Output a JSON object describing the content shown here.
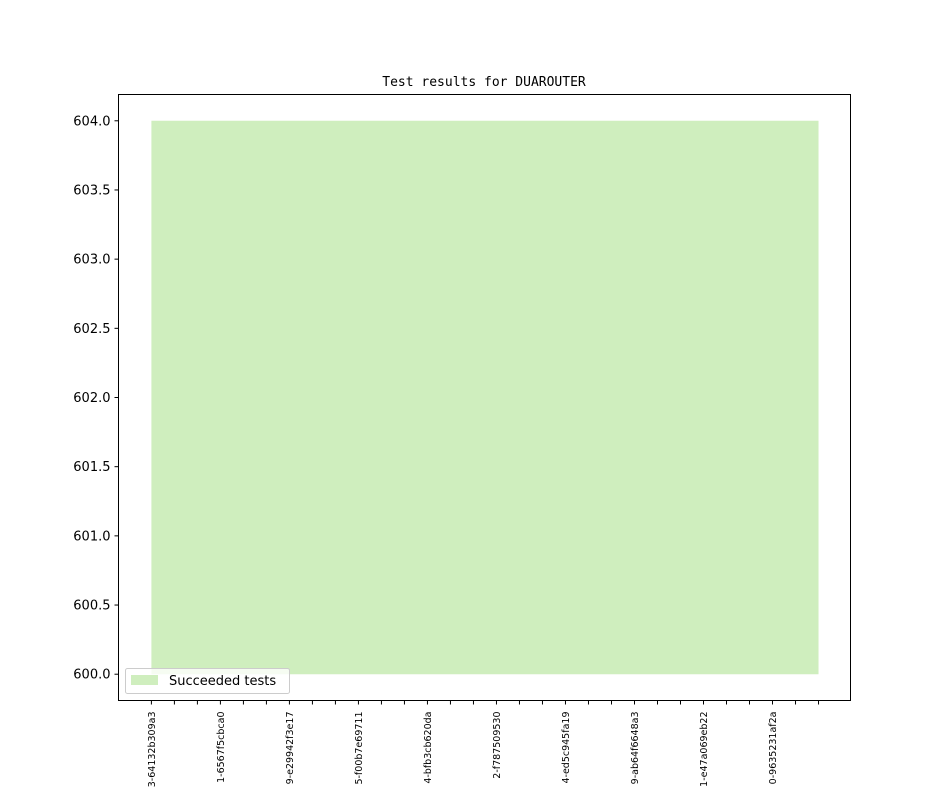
{
  "chart_data": {
    "type": "area",
    "title": "Test results for DUAROUTER",
    "xlabel": "",
    "ylabel": "",
    "x_tick_labels": [
      "3-64132b309a3",
      "",
      "",
      "1-6567f5cbca0",
      "",
      "",
      "9-e29942f3e17",
      "",
      "",
      "5-f00b7e69711",
      "",
      "",
      "4-bfb3cb620da",
      "",
      "",
      "2-f787509530",
      "",
      "",
      "4-ed5c945fa19",
      "",
      "",
      "9-ab64f6648a3",
      "",
      "",
      "1-e47a069eb22",
      "",
      "",
      "0-9635231af2a",
      "",
      ""
    ],
    "series": [
      {
        "name": "Succeeded tests",
        "color": "#cfeebe",
        "baseline": 600,
        "values": [
          604,
          604,
          604,
          604,
          604,
          604,
          604,
          604,
          604,
          604,
          604,
          604,
          604,
          604,
          604,
          604,
          604,
          604,
          604,
          604,
          604,
          604,
          604,
          604,
          604,
          604,
          604,
          604,
          604,
          604
        ]
      }
    ],
    "yticks": [
      "600.0",
      "600.5",
      "601.0",
      "601.5",
      "602.0",
      "602.5",
      "603.0",
      "603.5",
      "604.0"
    ],
    "ylim": [
      599.81,
      604.19
    ],
    "xlim": [
      -1.43,
      30.39
    ],
    "grid": false,
    "legend_position": "lower-left"
  }
}
